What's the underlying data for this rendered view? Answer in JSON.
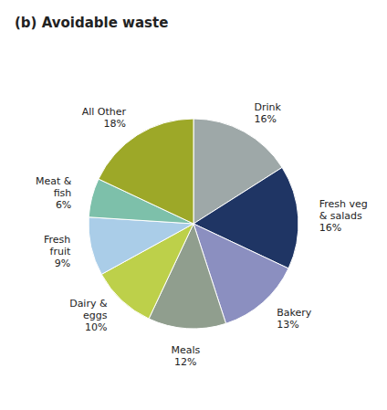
{
  "chart_data": {
    "type": "pie",
    "title": "(b) Avoidable waste",
    "categories": [
      "Drink\n16%",
      "Fresh veg\n& salads\n16%",
      "Bakery\n13%",
      "Meals\n12%",
      "Dairy &\neggs\n10%",
      "Fresh\nfruit\n9%",
      "Meat &\nfish\n6%",
      "All Other\n18%"
    ],
    "values": [
      16,
      16,
      13,
      12,
      10,
      9,
      6,
      18
    ],
    "colors": [
      "#9EA8A8",
      "#1F3564",
      "#8B8FC0",
      "#909E8E",
      "#BDD04A",
      "#AACDE8",
      "#7DC0AA",
      "#9DA828"
    ]
  }
}
